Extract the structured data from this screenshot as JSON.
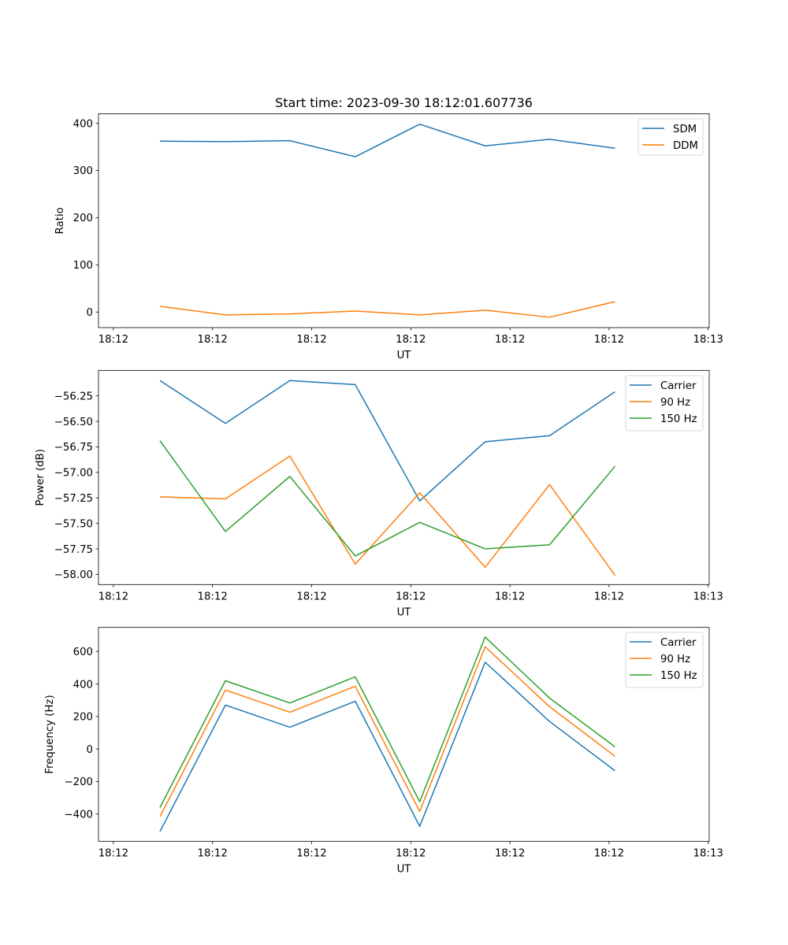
{
  "figure": {
    "title": "Start time: 2023-09-30 18:12:01.607736"
  },
  "chart_data": [
    {
      "type": "line",
      "title": "Start time: 2023-09-30 18:12:01.607736",
      "xlabel": "UT",
      "ylabel": "Ratio",
      "x_unit": "seconds after 18:12:00",
      "x": [
        4.7,
        11.3,
        17.8,
        24.4,
        30.9,
        37.5,
        44.0,
        50.6
      ],
      "xlim": [
        -1.5,
        60.1
      ],
      "x_ticks": [
        0,
        10,
        20,
        30,
        40,
        50,
        60
      ],
      "x_tick_labels": [
        "18:12",
        "18:12",
        "18:12",
        "18:12",
        "18:12",
        "18:12",
        "18:13"
      ],
      "ylim": [
        -33,
        420
      ],
      "y_ticks": [
        0,
        100,
        200,
        300,
        400
      ],
      "y_tick_labels": [
        "0",
        "100",
        "200",
        "300",
        "400"
      ],
      "grid": false,
      "legend_position": "top-right",
      "series": [
        {
          "name": "SDM",
          "color": "#1f77b4",
          "values": [
            362,
            361,
            363,
            329,
            398,
            352,
            366,
            347
          ]
        },
        {
          "name": "DDM",
          "color": "#ff7f0e",
          "values": [
            12,
            -6,
            -4,
            2,
            -6,
            4,
            -11,
            22
          ]
        }
      ]
    },
    {
      "type": "line",
      "title": "",
      "xlabel": "UT",
      "ylabel": "Power (dB)",
      "x_unit": "seconds after 18:12:00",
      "x": [
        4.7,
        11.3,
        17.8,
        24.4,
        30.9,
        37.5,
        44.0,
        50.6
      ],
      "xlim": [
        -1.5,
        60.1
      ],
      "x_ticks": [
        0,
        10,
        20,
        30,
        40,
        50,
        60
      ],
      "x_tick_labels": [
        "18:12",
        "18:12",
        "18:12",
        "18:12",
        "18:12",
        "18:12",
        "18:13"
      ],
      "ylim": [
        -58.1,
        -56.0
      ],
      "y_ticks": [
        -56.25,
        -56.5,
        -56.75,
        -57.0,
        -57.25,
        -57.5,
        -57.75,
        -58.0
      ],
      "y_tick_labels": [
        "−56.25",
        "−56.50",
        "−56.75",
        "−57.00",
        "−57.25",
        "−57.50",
        "−57.75",
        "−58.00"
      ],
      "grid": false,
      "legend_position": "top-right",
      "series": [
        {
          "name": "Carrier",
          "color": "#1f77b4",
          "values": [
            -56.1,
            -56.52,
            -56.1,
            -56.14,
            -57.28,
            -56.7,
            -56.64,
            -56.21
          ]
        },
        {
          "name": "90 Hz",
          "color": "#ff7f0e",
          "values": [
            -57.24,
            -57.26,
            -56.84,
            -57.9,
            -57.2,
            -57.93,
            -57.12,
            -58.01
          ]
        },
        {
          "name": "150 Hz",
          "color": "#2ca02c",
          "values": [
            -56.69,
            -57.58,
            -57.04,
            -57.82,
            -57.49,
            -57.75,
            -57.71,
            -56.94
          ]
        }
      ]
    },
    {
      "type": "line",
      "title": "",
      "xlabel": "UT",
      "ylabel": "Frequency (Hz)",
      "x_unit": "seconds after 18:12:00",
      "x": [
        4.7,
        11.3,
        17.8,
        24.4,
        30.9,
        37.5,
        44.0,
        50.6
      ],
      "xlim": [
        -1.5,
        60.1
      ],
      "x_ticks": [
        0,
        10,
        20,
        30,
        40,
        50,
        60
      ],
      "x_tick_labels": [
        "18:12",
        "18:12",
        "18:12",
        "18:12",
        "18:12",
        "18:12",
        "18:13"
      ],
      "ylim": [
        -568,
        748
      ],
      "y_ticks": [
        -400,
        -200,
        0,
        200,
        400,
        600
      ],
      "y_tick_labels": [
        "−400",
        "−200",
        "0",
        "200",
        "400",
        "600"
      ],
      "grid": false,
      "legend_position": "top-right",
      "series": [
        {
          "name": "Carrier",
          "color": "#1f77b4",
          "values": [
            -508,
            270,
            134,
            294,
            -476,
            534,
            169,
            -134
          ]
        },
        {
          "name": "90 Hz",
          "color": "#ff7f0e",
          "values": [
            -416,
            363,
            226,
            386,
            -384,
            629,
            260,
            -45
          ]
        },
        {
          "name": "150 Hz",
          "color": "#2ca02c",
          "values": [
            -360,
            420,
            283,
            444,
            -324,
            689,
            313,
            13
          ]
        }
      ]
    }
  ]
}
